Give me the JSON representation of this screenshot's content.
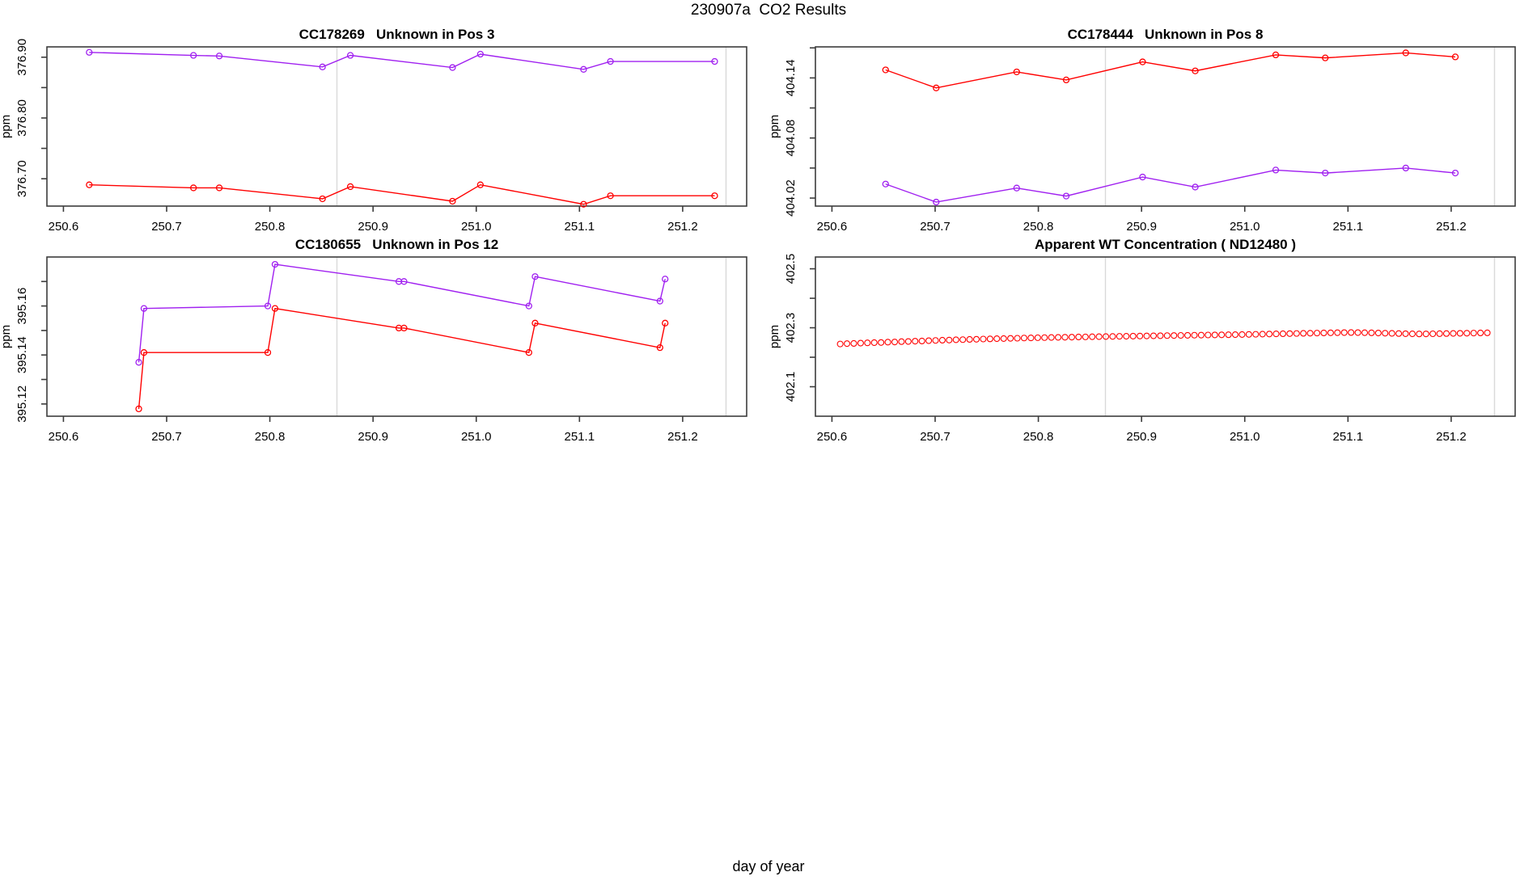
{
  "header": {
    "title": "230907a  CO2 Results"
  },
  "footer": {
    "xlabel": "day of year"
  },
  "colors": {
    "red_series": "#FF0000",
    "purple_series": "#A020F0",
    "gridline": "#D9D9D9",
    "axis": "#3C3C3C"
  },
  "xaxis_shared": {
    "tick_values": [
      250.6,
      250.7,
      250.8,
      250.9,
      251.0,
      251.1,
      251.2
    ],
    "tick_labels": [
      "250.6",
      "250.7",
      "250.8",
      "250.9",
      "251.0",
      "251.1",
      "251.2"
    ],
    "xlim": [
      250.584,
      251.262
    ],
    "gridlines_x": [
      250.865,
      251.242
    ]
  },
  "chart_data": [
    {
      "type": "line",
      "title": "CC178269   Unknown in Pos 3",
      "ylabel": "ppm",
      "ylim": [
        376.655,
        376.917
      ],
      "yticks": {
        "values": [
          376.7,
          376.8,
          376.9
        ],
        "labels": [
          "376.70",
          "376.80",
          "376.90"
        ],
        "minor": [
          376.75,
          376.85
        ]
      },
      "series": [
        {
          "name": "purple",
          "color": "#A020F0",
          "x": [
            250.625,
            250.726,
            250.751,
            250.851,
            250.878,
            250.977,
            251.004,
            251.104,
            251.13,
            251.231
          ],
          "y": [
            376.908,
            376.903,
            376.902,
            376.884,
            376.903,
            376.883,
            376.905,
            376.88,
            376.893,
            376.893
          ]
        },
        {
          "name": "red",
          "color": "#FF0000",
          "x": [
            250.625,
            250.726,
            250.751,
            250.851,
            250.878,
            250.977,
            251.004,
            251.104,
            251.13,
            251.231
          ],
          "y": [
            376.69,
            376.685,
            376.685,
            376.667,
            376.687,
            376.663,
            376.69,
            376.658,
            376.672,
            376.672
          ]
        }
      ]
    },
    {
      "type": "line",
      "title": "CC178444   Unknown in Pos 8",
      "ylabel": "ppm",
      "ylim": [
        404.012,
        404.171
      ],
      "yticks": {
        "values": [
          404.02,
          404.08,
          404.14
        ],
        "labels": [
          "404.02",
          "404.08",
          "404.14"
        ],
        "minor": [
          404.05,
          404.11,
          404.17
        ]
      },
      "series": [
        {
          "name": "red",
          "color": "#FF0000",
          "x": [
            250.652,
            250.701,
            250.779,
            250.827,
            250.901,
            250.952,
            251.03,
            251.078,
            251.156,
            251.204
          ],
          "y": [
            404.148,
            404.13,
            404.146,
            404.138,
            404.156,
            404.147,
            404.163,
            404.16,
            404.165,
            404.161
          ]
        },
        {
          "name": "purple",
          "color": "#A020F0",
          "x": [
            250.652,
            250.701,
            250.779,
            250.827,
            250.901,
            250.952,
            251.03,
            251.078,
            251.156,
            251.204
          ],
          "y": [
            404.034,
            404.016,
            404.03,
            404.022,
            404.041,
            404.031,
            404.048,
            404.045,
            404.05,
            404.045
          ]
        }
      ]
    },
    {
      "type": "line",
      "title": "CC180655   Unknown in Pos 12",
      "ylabel": "ppm",
      "ylim": [
        395.115,
        395.18
      ],
      "yticks": {
        "values": [
          395.12,
          395.14,
          395.16
        ],
        "labels": [
          "395.12",
          "395.14",
          "395.16"
        ],
        "minor": [
          395.13,
          395.15,
          395.17
        ]
      },
      "series": [
        {
          "name": "purple",
          "color": "#A020F0",
          "x": [
            250.673,
            250.678,
            250.798,
            250.805,
            250.925,
            250.93,
            251.051,
            251.057,
            251.178,
            251.183
          ],
          "y": [
            395.137,
            395.159,
            395.16,
            395.177,
            395.17,
            395.17,
            395.16,
            395.172,
            395.162,
            395.171
          ]
        },
        {
          "name": "red",
          "color": "#FF0000",
          "x": [
            250.673,
            250.678,
            250.798,
            250.805,
            250.925,
            250.93,
            251.051,
            251.057,
            251.178,
            251.183
          ],
          "y": [
            395.118,
            395.141,
            395.141,
            395.159,
            395.151,
            395.151,
            395.141,
            395.153,
            395.143,
            395.153
          ]
        }
      ]
    },
    {
      "type": "scatter",
      "title": "Apparent WT Concentration ( ND12480 )",
      "ylabel": "ppm",
      "ylim": [
        402.0,
        402.54
      ],
      "yticks": {
        "values": [
          402.1,
          402.3,
          402.5
        ],
        "labels": [
          "402.1",
          "402.3",
          "402.5"
        ],
        "minor": [
          402.2,
          402.4
        ]
      },
      "series": [
        {
          "name": "red",
          "color": "#FF0000",
          "x": [
            250.608,
            250.6146,
            250.6212,
            250.6278,
            250.6344,
            250.641,
            250.6476,
            250.6542,
            250.6608,
            250.6674,
            250.674,
            250.6806,
            250.6872,
            250.6938,
            250.7004,
            250.707,
            250.7136,
            250.7202,
            250.7268,
            250.7334,
            250.74,
            250.7466,
            250.7532,
            250.7598,
            250.7664,
            250.773,
            250.7796,
            250.7862,
            250.7928,
            250.7994,
            250.806,
            250.8126,
            250.8192,
            250.8258,
            250.8324,
            250.839,
            250.8456,
            250.8522,
            250.8588,
            250.8654,
            250.872,
            250.8786,
            250.8852,
            250.8918,
            250.8984,
            250.905,
            250.9116,
            250.9182,
            250.9248,
            250.9314,
            250.938,
            250.9446,
            250.9512,
            250.9578,
            250.9644,
            250.971,
            250.9776,
            250.9842,
            250.9908,
            250.9974,
            251.004,
            251.0106,
            251.0172,
            251.0238,
            251.0304,
            251.037,
            251.0436,
            251.0502,
            251.0568,
            251.0634,
            251.07,
            251.0766,
            251.0832,
            251.0898,
            251.0964,
            251.103,
            251.1096,
            251.1162,
            251.1228,
            251.1294,
            251.136,
            251.1426,
            251.1492,
            251.1558,
            251.1624,
            251.169,
            251.1756,
            251.1822,
            251.1888,
            251.1954,
            251.202,
            251.2086,
            251.2152,
            251.2218,
            251.2284,
            251.235
          ],
          "y": [
            402.245,
            402.2462,
            402.2468,
            402.248,
            402.2488,
            402.2495,
            402.25,
            402.2512,
            402.2518,
            402.253,
            402.2535,
            402.2545,
            402.255,
            402.2562,
            402.257,
            402.2578,
            402.2583,
            402.2592,
            402.2597,
            402.2605,
            402.261,
            402.2618,
            402.2622,
            402.263,
            402.2633,
            402.2641,
            402.2645,
            402.2652,
            402.2656,
            402.2662,
            402.2666,
            402.2671,
            402.2674,
            402.2679,
            402.2682,
            402.2687,
            402.269,
            402.2695,
            402.2698,
            402.2702,
            402.2705,
            402.271,
            402.2712,
            402.2716,
            402.272,
            402.2723,
            402.2727,
            402.273,
            402.2734,
            402.2737,
            402.2741,
            402.2744,
            402.2748,
            402.2751,
            402.2755,
            402.2757,
            402.2761,
            402.2763,
            402.2767,
            402.277,
            402.2775,
            402.2779,
            402.2784,
            402.2788,
            402.2793,
            402.2797,
            402.2802,
            402.2806,
            402.2811,
            402.2815,
            402.282,
            402.2824,
            402.2829,
            402.2833,
            402.2836,
            402.2838,
            402.2836,
            402.2832,
            402.2828,
            402.2822,
            402.2816,
            402.281,
            402.2804,
            402.2798,
            402.2794,
            402.279,
            402.2792,
            402.2796,
            402.28,
            402.2804,
            402.2808,
            402.2812,
            402.2816,
            402.282,
            402.2824,
            402.2828
          ]
        }
      ]
    }
  ]
}
